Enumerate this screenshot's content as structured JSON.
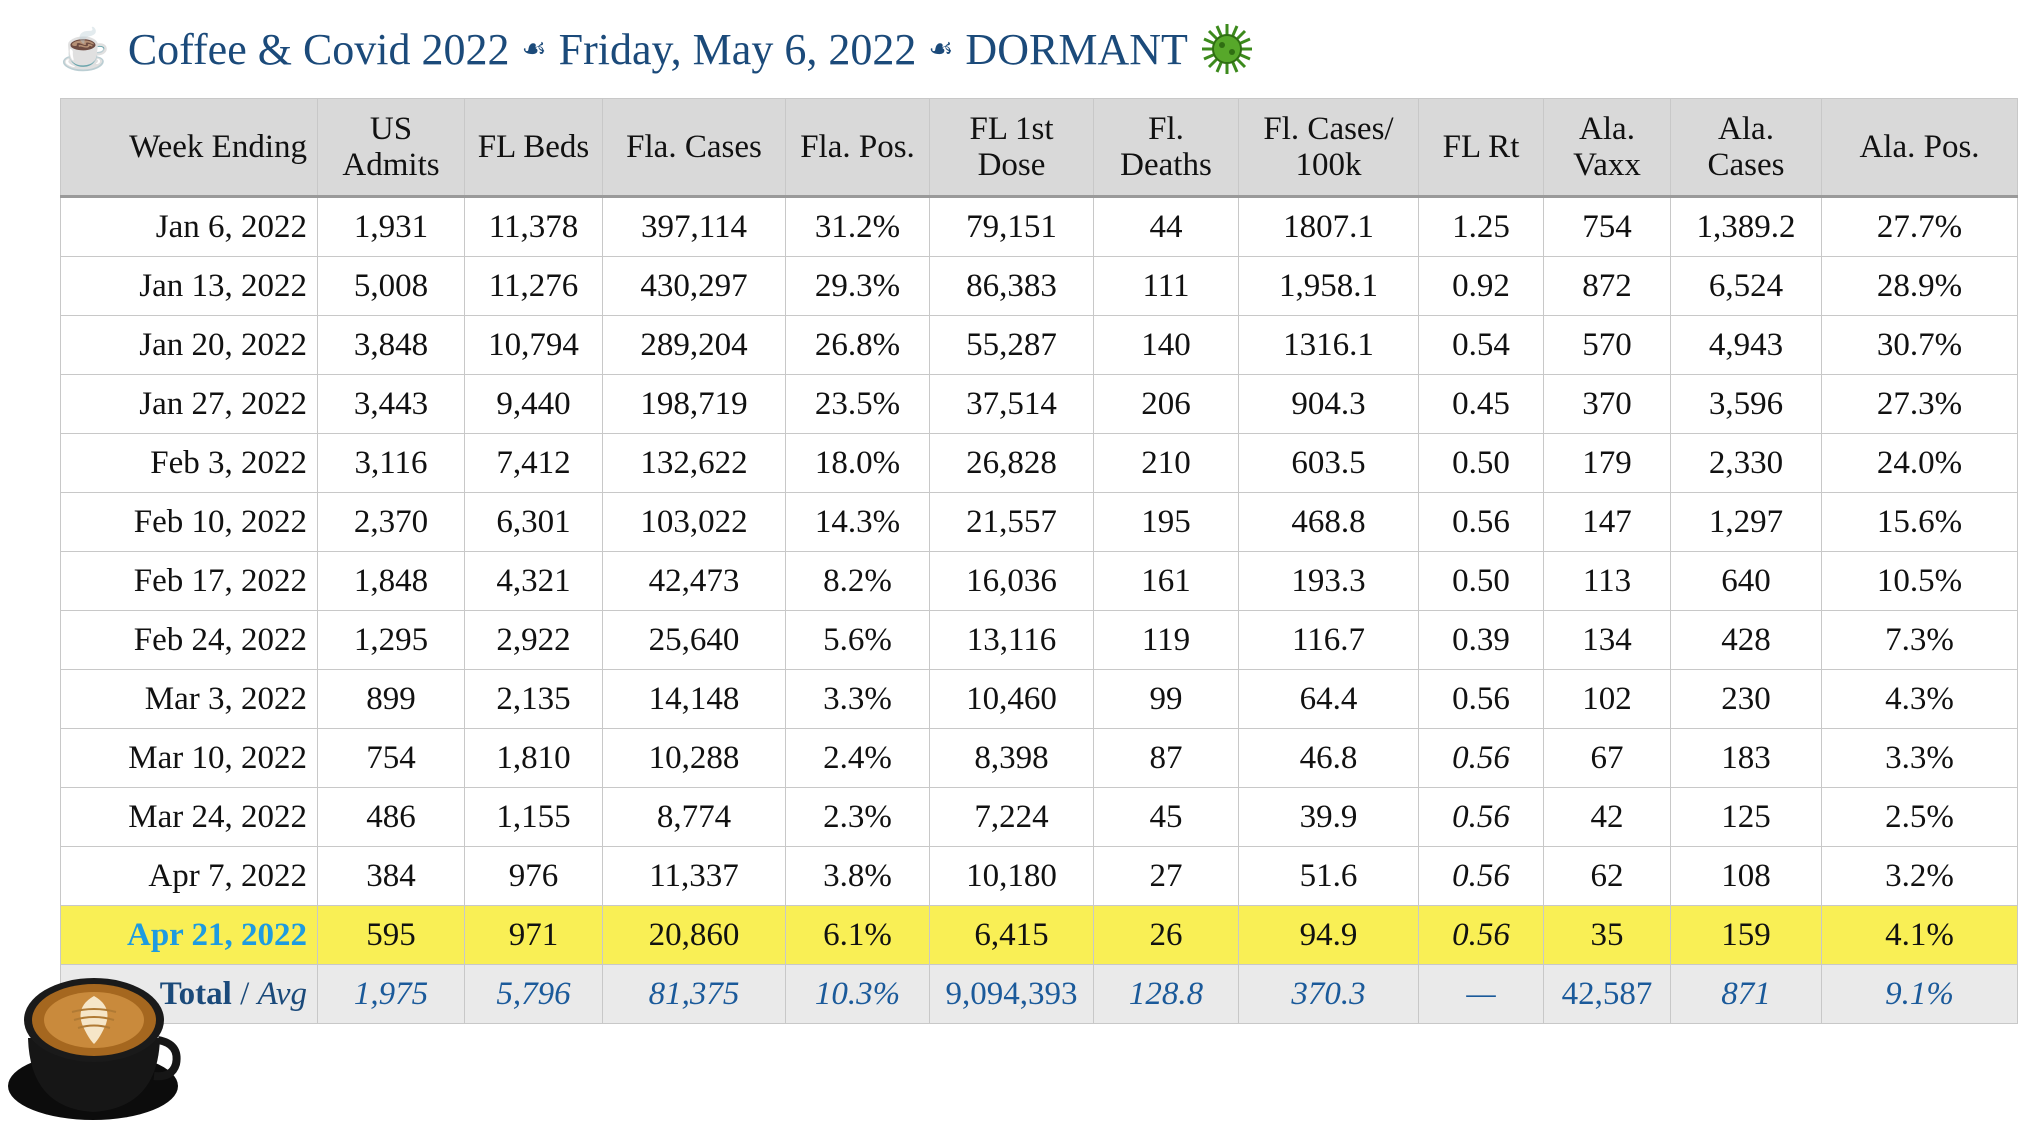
{
  "header": {
    "cup_icon": "coffee-cup-icon",
    "parts": [
      "Coffee & Covid 2022",
      "Friday, May 6, 2022",
      "DORMANT"
    ],
    "separator_glyph": "☙",
    "virus_icon": "virus-icon"
  },
  "table": {
    "columns": [
      [
        "Week Ending"
      ],
      [
        "US",
        "Admits"
      ],
      [
        "FL Beds"
      ],
      [
        "Fla. Cases"
      ],
      [
        "Fla. Pos."
      ],
      [
        "FL 1st",
        "Dose"
      ],
      [
        "Fl.",
        "Deaths"
      ],
      [
        "Fl. Cases/",
        "100k"
      ],
      [
        "FL Rt"
      ],
      [
        "Ala.",
        "Vaxx"
      ],
      [
        "Ala.",
        "Cases"
      ],
      [
        "Ala. Pos."
      ]
    ],
    "rows": [
      [
        "Jan 6, 2022",
        "1,931",
        "11,378",
        "397,114",
        "31.2%",
        "79,151",
        "44",
        "1807.1",
        "1.25",
        "754",
        "1,389.2",
        "27.7%"
      ],
      [
        "Jan 13, 2022",
        "5,008",
        "11,276",
        "430,297",
        "29.3%",
        "86,383",
        "111",
        "1,958.1",
        "0.92",
        "872",
        "6,524",
        "28.9%"
      ],
      [
        "Jan 20, 2022",
        "3,848",
        "10,794",
        "289,204",
        "26.8%",
        "55,287",
        "140",
        "1316.1",
        "0.54",
        "570",
        "4,943",
        "30.7%"
      ],
      [
        "Jan 27, 2022",
        "3,443",
        "9,440",
        "198,719",
        "23.5%",
        "37,514",
        "206",
        "904.3",
        "0.45",
        "370",
        "3,596",
        "27.3%"
      ],
      [
        "Feb 3, 2022",
        "3,116",
        "7,412",
        "132,622",
        "18.0%",
        "26,828",
        "210",
        "603.5",
        "0.50",
        "179",
        "2,330",
        "24.0%"
      ],
      [
        "Feb 10, 2022",
        "2,370",
        "6,301",
        "103,022",
        "14.3%",
        "21,557",
        "195",
        "468.8",
        "0.56",
        "147",
        "1,297",
        "15.6%"
      ],
      [
        "Feb 17, 2022",
        "1,848",
        "4,321",
        "42,473",
        "8.2%",
        "16,036",
        "161",
        "193.3",
        "0.50",
        "113",
        "640",
        "10.5%"
      ],
      [
        "Feb 24, 2022",
        "1,295",
        "2,922",
        "25,640",
        "5.6%",
        "13,116",
        "119",
        "116.7",
        "0.39",
        "134",
        "428",
        "7.3%"
      ],
      [
        "Mar 3, 2022",
        "899",
        "2,135",
        "14,148",
        "3.3%",
        "10,460",
        "99",
        "64.4",
        "0.56",
        "102",
        "230",
        "4.3%"
      ],
      [
        "Mar 10, 2022",
        "754",
        "1,810",
        "10,288",
        "2.4%",
        "8,398",
        "87",
        "46.8",
        "0.56",
        "67",
        "183",
        "3.3%"
      ],
      [
        "Mar 24, 2022",
        "486",
        "1,155",
        "8,774",
        "2.3%",
        "7,224",
        "45",
        "39.9",
        "0.56",
        "42",
        "125",
        "2.5%"
      ],
      [
        "Apr 7, 2022",
        "384",
        "976",
        "11,337",
        "3.8%",
        "10,180",
        "27",
        "51.6",
        "0.56",
        "62",
        "108",
        "3.2%"
      ]
    ],
    "italic_rt_rows": [
      9,
      10,
      11
    ],
    "highlight_row": [
      "Apr 21, 2022",
      "595",
      "971",
      "20,860",
      "6.1%",
      "6,415",
      "26",
      "94.9",
      "0.56",
      "35",
      "159",
      "4.1%"
    ],
    "total_row": {
      "label_bold": "Total",
      "label_sep": " / ",
      "label_avg": "Avg",
      "values": [
        "1,975",
        "5,796",
        "81,375",
        "10.3%",
        "9,094,393",
        "128.8",
        "370.3",
        "—",
        "42,587",
        "871",
        "9.1%"
      ],
      "plain_indices": [
        4,
        8
      ]
    }
  }
}
